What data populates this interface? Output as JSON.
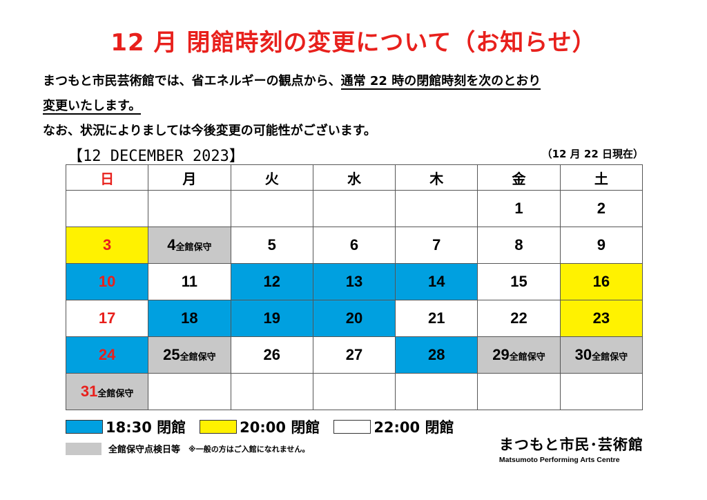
{
  "title": "12 月  閉館時刻の変更について（お知らせ）",
  "intro": {
    "line1_a": "まつもと市民芸術館では、省エネルギーの観点から、",
    "line1_b": "通常 22 時の閉館時刻を次のとおり",
    "line2": "変更いたします。",
    "line3": "なお、状況によりましては今後変更の可能性がございます。"
  },
  "calendar_heading": "【12 DECEMBER  2023】",
  "as_of": "（12 月 22 日現在）",
  "weekdays": [
    "日",
    "月",
    "火",
    "水",
    "木",
    "金",
    "土"
  ],
  "weeks": [
    [
      {
        "d": ""
      },
      {
        "d": ""
      },
      {
        "d": ""
      },
      {
        "d": ""
      },
      {
        "d": ""
      },
      {
        "d": "1"
      },
      {
        "d": "2"
      }
    ],
    [
      {
        "d": "3",
        "c": "yellow",
        "red": true
      },
      {
        "d": "4",
        "note": "全館保守",
        "c": "gray"
      },
      {
        "d": "5"
      },
      {
        "d": "6"
      },
      {
        "d": "7"
      },
      {
        "d": "8"
      },
      {
        "d": "9"
      }
    ],
    [
      {
        "d": "10",
        "c": "blue",
        "red": true
      },
      {
        "d": "11"
      },
      {
        "d": "12",
        "c": "blue"
      },
      {
        "d": "13",
        "c": "blue"
      },
      {
        "d": "14",
        "c": "blue"
      },
      {
        "d": "15"
      },
      {
        "d": "16",
        "c": "yellow"
      }
    ],
    [
      {
        "d": "17",
        "red": true
      },
      {
        "d": "18",
        "c": "blue"
      },
      {
        "d": "19",
        "c": "blue"
      },
      {
        "d": "20",
        "c": "blue"
      },
      {
        "d": "21"
      },
      {
        "d": "22"
      },
      {
        "d": "23",
        "c": "yellow"
      }
    ],
    [
      {
        "d": "24",
        "c": "blue",
        "red": true
      },
      {
        "d": "25",
        "note": "全館保守",
        "c": "gray"
      },
      {
        "d": "26"
      },
      {
        "d": "27"
      },
      {
        "d": "28",
        "c": "blue"
      },
      {
        "d": "29",
        "note": "全館保守",
        "c": "gray"
      },
      {
        "d": "30",
        "note": "全館保守",
        "c": "gray"
      }
    ],
    [
      {
        "d": "31",
        "note": "全館保守",
        "c": "gray",
        "red": true
      },
      {
        "d": ""
      },
      {
        "d": ""
      },
      {
        "d": ""
      },
      {
        "d": ""
      },
      {
        "d": ""
      },
      {
        "d": ""
      }
    ]
  ],
  "legend": {
    "blue_label": "18:30 閉館",
    "yellow_label": "20:00 閉館",
    "white_label": "22:00 閉館",
    "gray_label": "全館保守点検日等",
    "gray_note": "※一般の方はご入館になれません。"
  },
  "colors": {
    "blue": "#00a0e0",
    "yellow": "#fff200",
    "gray": "#c8c8c8",
    "red": "#e8201c"
  },
  "logo": {
    "jp": "まつもと市民･芸術館",
    "en": "Matsumoto Performing Arts Centre"
  }
}
